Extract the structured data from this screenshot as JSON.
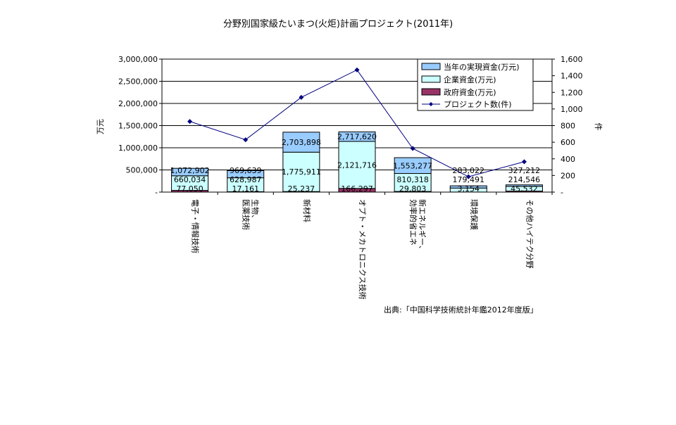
{
  "chart_data": {
    "type": "bar",
    "title": "分野別国家級たいまつ(火炬)計画プロジェクト(2011年)",
    "ylabel": "万元",
    "y2label": "件",
    "ylim": [
      0,
      3000000
    ],
    "y2lim": [
      0,
      1600
    ],
    "yticks": [
      "-",
      "500,000",
      "1,000,000",
      "1,500,000",
      "2,000,000",
      "2,500,000",
      "3,000,000"
    ],
    "y2ticks": [
      "-",
      "200",
      "400",
      "600",
      "800",
      "1,000",
      "1,200",
      "1,400",
      "1,600"
    ],
    "grid": true,
    "legend_position": "top-right",
    "source": "出典:「中国科学技術統計年鑑2012年度版」",
    "categories": [
      "電子・情報技術",
      "生物、医薬技術",
      "新材料",
      "オプト・メカトロニクス技術",
      "新エネルギー、効率的省エネ",
      "環境保護",
      "その他ハイテク分野"
    ],
    "series": [
      {
        "name": "当年の実現資金(万元)",
        "type": "bar",
        "color": "#99ccff",
        "values": [
          1072902,
          969639,
          2703898,
          2717620,
          1553277,
          283022,
          327212
        ],
        "labels": [
          "1,072,902",
          "969,639",
          "2,703,898",
          "2,717,620",
          "1,553,277",
          "283,022",
          "327,212"
        ]
      },
      {
        "name": "企業資金(万元)",
        "type": "bar",
        "color": "#ccffff",
        "values": [
          660034,
          628987,
          1775911,
          2121716,
          810318,
          179491,
          214546
        ],
        "labels": [
          "660,034",
          "628,987",
          "1,775,911",
          "2,121,716",
          "810,318",
          "179,491",
          "214,546"
        ]
      },
      {
        "name": "政府資金(万元)",
        "type": "bar",
        "color": "#993366",
        "values": [
          77050,
          17161,
          25237,
          166297,
          29803,
          3154,
          45532
        ],
        "labels": [
          "77,050",
          "17,161",
          "25,237",
          "166,297",
          "29,803",
          "3,154",
          "45,532"
        ]
      },
      {
        "name": "プロジェクト数(件)",
        "type": "line",
        "color": "#000080",
        "values": [
          850,
          630,
          1140,
          1470,
          525,
          185,
          365
        ]
      }
    ]
  }
}
